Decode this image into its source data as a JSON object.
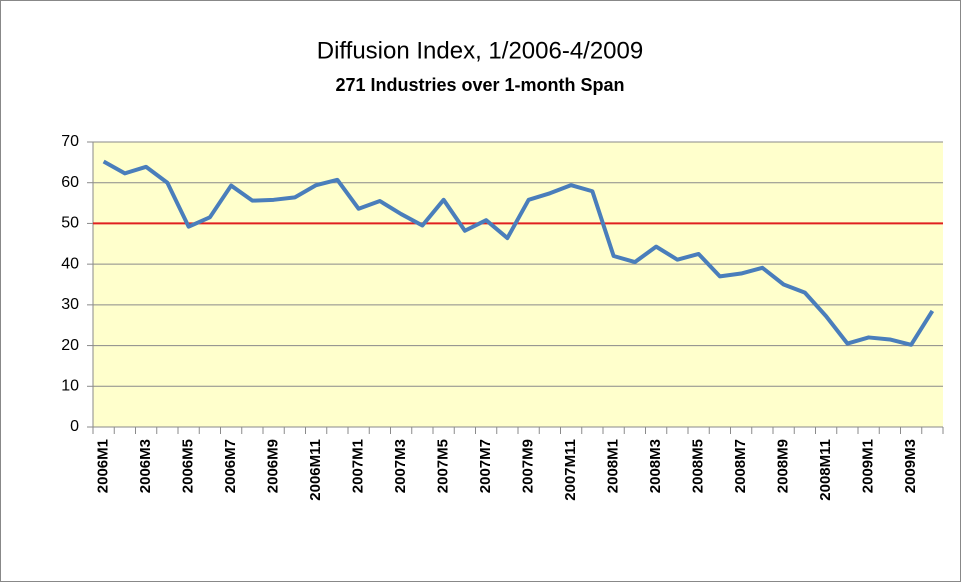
{
  "chart_data": {
    "type": "line",
    "title": "Diffusion Index, 1/2006-4/2009",
    "subtitle": "271 Industries over 1-month Span",
    "categories": [
      "2006M1",
      null,
      "2006M3",
      null,
      "2006M5",
      null,
      "2006M7",
      null,
      "2006M9",
      null,
      "2006M11",
      null,
      "2007M1",
      null,
      "2007M3",
      null,
      "2007M5",
      null,
      "2007M7",
      null,
      "2007M9",
      null,
      "2007M11",
      null,
      "2008M1",
      null,
      "2008M3",
      null,
      "2008M5",
      null,
      "2008M7",
      null,
      "2008M9",
      null,
      "2008M11",
      null,
      "2009M1",
      null,
      "2009M3",
      null
    ],
    "series": [
      {
        "color": "#4a7ebb",
        "values": [
          65.2,
          62.3,
          63.9,
          60,
          49.2,
          51.5,
          59.3,
          55.6,
          55.8,
          56.4,
          59.4,
          60.7,
          53.6,
          55.5,
          52.3,
          49.5,
          55.8,
          48.2,
          50.8,
          46.4,
          55.8,
          57.4,
          59.4,
          57.9,
          42,
          40.5,
          44.3,
          41.1,
          42.5,
          37,
          37.7,
          39.1,
          35,
          33,
          27.2,
          20.5,
          22,
          21.5,
          20.2,
          28.5
        ]
      }
    ],
    "reference_line": {
      "value": 50,
      "color": "#e02020"
    },
    "ylim": [
      0,
      70
    ],
    "yticks": [
      0,
      10,
      20,
      30,
      40,
      50,
      60,
      70
    ],
    "grid": true,
    "plot_background": "#ffffcc"
  }
}
